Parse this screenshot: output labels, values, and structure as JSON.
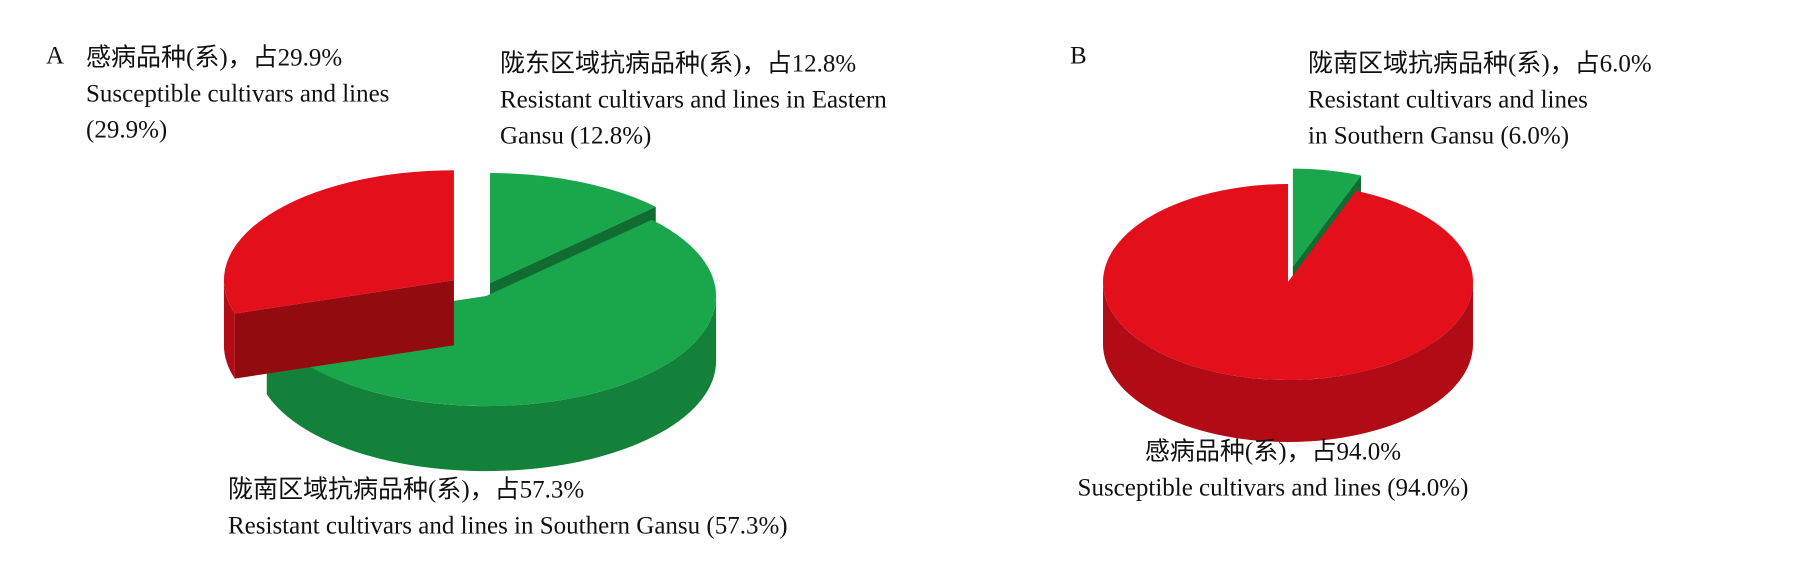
{
  "chart_data": [
    {
      "type": "pie",
      "panel_label": "A",
      "categories": [
        [
          "陇东区域抗病品种(系)，占12.8%",
          "Resistant cultivars and lines in Eastern",
          "Gansu (12.8%)"
        ],
        [
          "陇南区域抗病品种(系)，占57.3%",
          "Resistant cultivars and lines in Southern Gansu (57.3%)"
        ],
        [
          "感病品种(系)，占29.9%",
          "Susceptible cultivars and lines",
          "(29.9%)"
        ]
      ],
      "values": [
        12.8,
        57.3,
        29.9
      ],
      "colors": [
        "#1aa64b",
        "#1aa64b",
        "#e3101b"
      ]
    },
    {
      "type": "pie",
      "panel_label": "B",
      "categories": [
        [
          "陇南区域抗病品种(系)，占6.0%",
          "Resistant cultivars and lines",
          "in Southern Gansu (6.0%)"
        ],
        [
          "感病品种(系)，占94.0%",
          "Susceptible cultivars and lines (94.0%)"
        ]
      ],
      "values": [
        6.0,
        94.0
      ],
      "colors": [
        "#1aa64b",
        "#e3101b"
      ]
    }
  ]
}
